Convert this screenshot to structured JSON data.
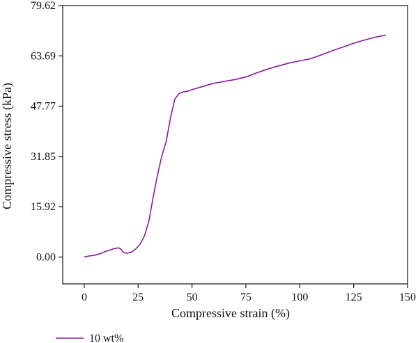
{
  "chart_data": {
    "type": "line",
    "title": "",
    "xlabel": "Compressive strain (%)",
    "ylabel": "Compressive stress (kPa)",
    "xlim": [
      -10,
      150
    ],
    "ylim": [
      -8.5,
      79.62
    ],
    "xticks": [
      0,
      25,
      50,
      75,
      100,
      125,
      150
    ],
    "xtick_labels": [
      "0",
      "25",
      "50",
      "75",
      "100",
      "125",
      "150"
    ],
    "yticks": [
      0.0,
      15.92,
      31.85,
      47.77,
      63.69,
      79.62
    ],
    "ytick_labels": [
      "0.00",
      "15.92",
      "31.85",
      "47.77",
      "63.69",
      "79.62"
    ],
    "grid": false,
    "legend_position": "bottom-left",
    "series": [
      {
        "name": "10 wt%",
        "color": "#8b1a9c",
        "x": [
          0,
          2,
          5,
          8,
          10,
          12,
          14,
          16,
          17,
          18,
          19,
          20,
          22,
          24,
          26,
          28,
          30,
          32,
          34,
          36,
          38,
          40,
          41,
          42,
          44,
          45,
          46,
          48,
          50,
          55,
          60,
          65,
          70,
          75,
          80,
          85,
          90,
          95,
          100,
          105,
          110,
          115,
          120,
          125,
          130,
          135,
          140
        ],
        "y": [
          0,
          0.3,
          0.6,
          1.2,
          1.8,
          2.2,
          2.7,
          2.9,
          2.5,
          1.6,
          1.3,
          1.2,
          1.6,
          2.6,
          4.2,
          6.8,
          11.5,
          19.0,
          26.0,
          32.0,
          36.5,
          44.0,
          47.0,
          50.0,
          51.8,
          52.0,
          52.3,
          52.5,
          53.0,
          54.0,
          55.0,
          55.6,
          56.2,
          57.0,
          58.3,
          59.5,
          60.5,
          61.4,
          62.1,
          62.8,
          64.0,
          65.3,
          66.5,
          67.7,
          68.7,
          69.6,
          70.3
        ]
      }
    ]
  }
}
